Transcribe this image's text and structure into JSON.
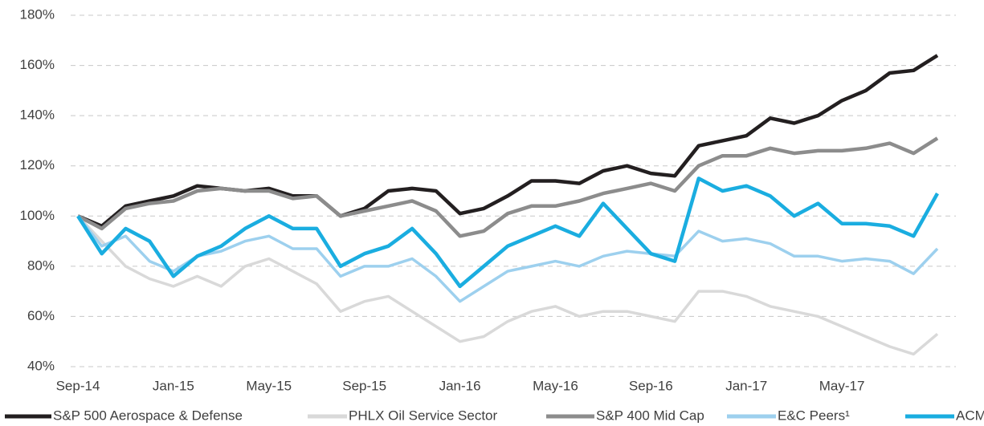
{
  "chart_data": {
    "type": "line",
    "categories": [
      "Sep-14",
      null,
      null,
      null,
      "Jan-15",
      null,
      null,
      null,
      "May-15",
      null,
      null,
      null,
      "Sep-15",
      null,
      null,
      null,
      "Jan-16",
      null,
      null,
      null,
      "May-16",
      null,
      null,
      null,
      "Sep-16",
      null,
      null,
      null,
      "Jan-17",
      null,
      null,
      null,
      "May-17",
      null,
      null,
      null,
      null
    ],
    "series": [
      {
        "name": "S&P 500 Aerospace & Defense",
        "color": "#231f20",
        "values": [
          100,
          96,
          104,
          106,
          108,
          112,
          111,
          110,
          111,
          108,
          108,
          100,
          103,
          110,
          111,
          110,
          101,
          103,
          108,
          114,
          114,
          113,
          118,
          120,
          117,
          116,
          128,
          130,
          132,
          139,
          137,
          140,
          146,
          150,
          157,
          158,
          164
        ]
      },
      {
        "name": "PHLX Oil Service Sector",
        "color": "#d9d9d9",
        "values": [
          100,
          90,
          80,
          75,
          72,
          76,
          72,
          80,
          83,
          78,
          73,
          62,
          66,
          68,
          62,
          56,
          50,
          52,
          58,
          62,
          64,
          60,
          62,
          62,
          60,
          58,
          70,
          70,
          68,
          64,
          62,
          60,
          56,
          52,
          48,
          45,
          53
        ]
      },
      {
        "name": "S&P 400 Mid Cap",
        "color": "#8c8c8c",
        "values": [
          100,
          95,
          103,
          105,
          106,
          110,
          111,
          110,
          110,
          107,
          108,
          100,
          102,
          104,
          106,
          102,
          92,
          94,
          101,
          104,
          104,
          106,
          109,
          111,
          113,
          110,
          120,
          124,
          124,
          127,
          125,
          126,
          126,
          127,
          129,
          125,
          131
        ]
      },
      {
        "name": "E&C Peers¹",
        "color": "#9dd0ee",
        "values": [
          100,
          88,
          92,
          82,
          78,
          84,
          86,
          90,
          92,
          87,
          87,
          76,
          80,
          80,
          83,
          76,
          66,
          72,
          78,
          80,
          82,
          80,
          84,
          86,
          85,
          84,
          94,
          90,
          91,
          89,
          84,
          84,
          82,
          83,
          82,
          77,
          87
        ]
      },
      {
        "name": "ACM",
        "color": "#1aade0",
        "values": [
          100,
          85,
          95,
          90,
          76,
          84,
          88,
          95,
          100,
          95,
          95,
          80,
          85,
          88,
          95,
          85,
          72,
          80,
          88,
          92,
          96,
          92,
          105,
          95,
          85,
          82,
          115,
          110,
          112,
          108,
          100,
          105,
          97,
          97,
          96,
          92,
          109
        ]
      }
    ],
    "ylim": [
      40,
      180
    ],
    "yticks": [
      {
        "value": 40,
        "label": "40%"
      },
      {
        "value": 60,
        "label": "60%"
      },
      {
        "value": 80,
        "label": "80%"
      },
      {
        "value": 100,
        "label": "100%"
      },
      {
        "value": 120,
        "label": "120%"
      },
      {
        "value": 140,
        "label": "140%"
      },
      {
        "value": 160,
        "label": "160%"
      },
      {
        "value": 180,
        "label": "180%"
      }
    ],
    "grid": true,
    "legend": "bottom"
  }
}
